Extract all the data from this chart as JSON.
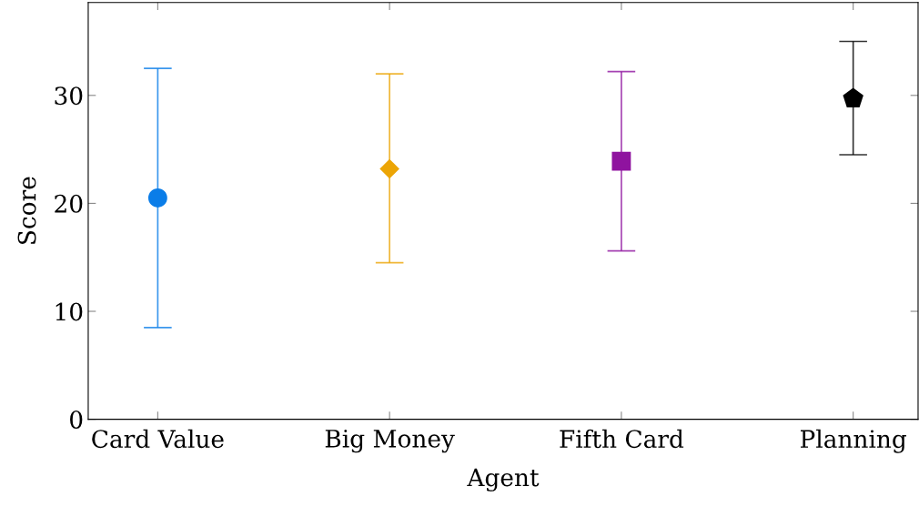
{
  "chart_data": {
    "type": "scatter",
    "xlabel": "Agent",
    "ylabel": "Score",
    "categories": [
      "Card Value",
      "Big Money",
      "Fifth Card",
      "Planning"
    ],
    "series": [
      {
        "color": "#0a7de8",
        "marker": "circle",
        "x": [
          "Card Value"
        ],
        "values": [
          20.5
        ],
        "errors": [
          [
            8.5,
            32.5
          ]
        ]
      },
      {
        "color": "#eca505",
        "marker": "diamond",
        "x": [
          "Big Money"
        ],
        "values": [
          23.2
        ],
        "errors": [
          [
            14.5,
            32.0
          ]
        ]
      },
      {
        "color": "#8f139f",
        "marker": "square",
        "x": [
          "Fifth Card"
        ],
        "values": [
          23.9
        ],
        "errors": [
          [
            15.6,
            32.2
          ]
        ]
      },
      {
        "color": "#000000",
        "x": [
          "Planning"
        ],
        "values": [
          29.7
        ],
        "errors": [
          [
            24.5,
            35.0
          ]
        ]
      }
    ],
    "ylim": [
      0,
      38.6
    ],
    "yticks": [
      0,
      10,
      20,
      30
    ],
    "grid": false,
    "legend": false
  }
}
